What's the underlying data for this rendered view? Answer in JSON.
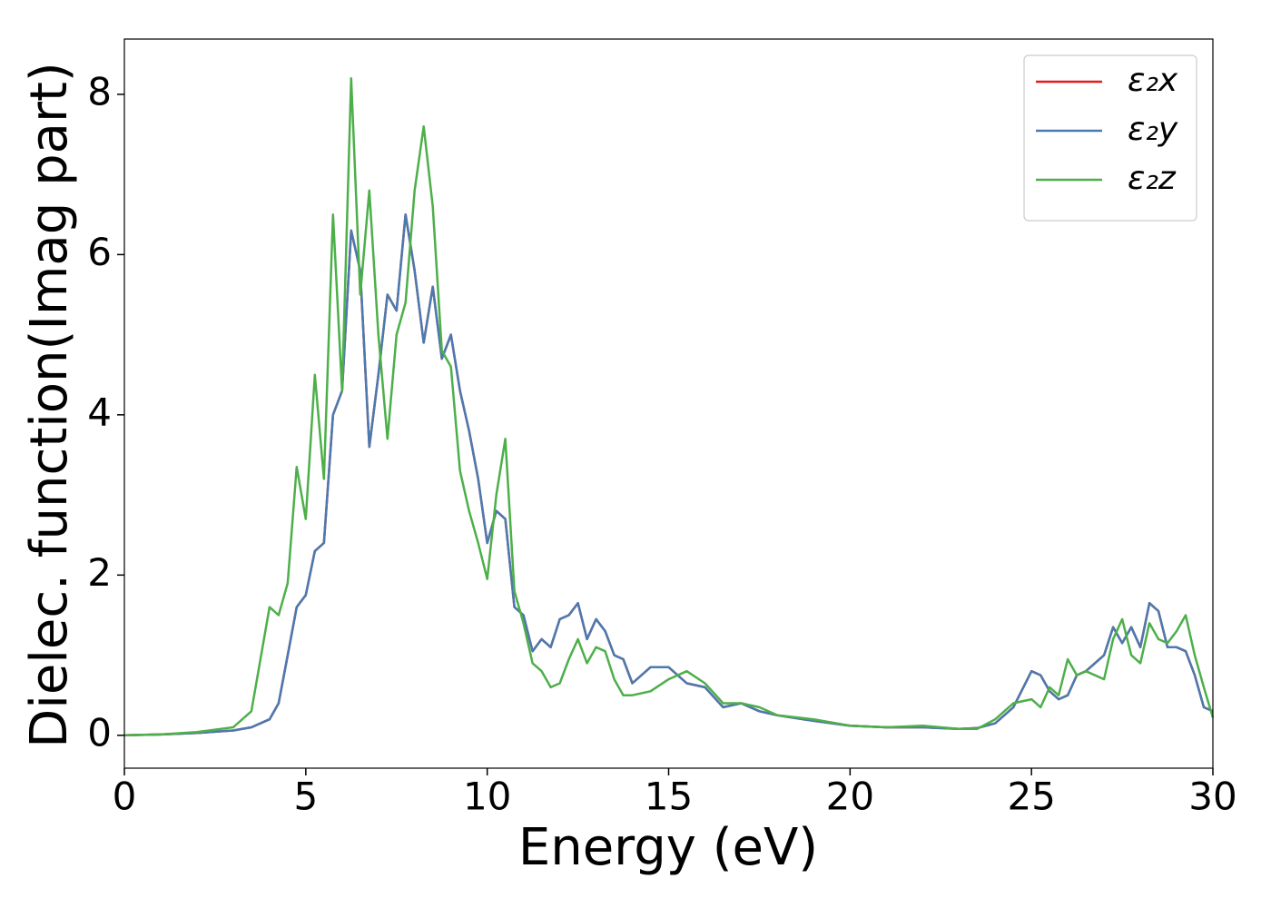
{
  "chart_data": {
    "type": "line",
    "x_label": "Energy (eV)",
    "y_label": "Dielec. function(Imag part)",
    "x": [
      0,
      1,
      2,
      3,
      3.5,
      4,
      4.25,
      4.5,
      4.75,
      5,
      5.25,
      5.5,
      5.75,
      6,
      6.25,
      6.5,
      6.75,
      7,
      7.25,
      7.5,
      7.75,
      8,
      8.25,
      8.5,
      8.75,
      9,
      9.25,
      9.5,
      9.75,
      10,
      10.25,
      10.5,
      10.75,
      11,
      11.25,
      11.5,
      11.75,
      12,
      12.25,
      12.5,
      12.75,
      13,
      13.25,
      13.5,
      13.75,
      14,
      14.5,
      15,
      15.5,
      16,
      16.5,
      17,
      17.5,
      18,
      19,
      20,
      21,
      22,
      23,
      23.5,
      24,
      24.5,
      25,
      25.25,
      25.5,
      25.75,
      26,
      26.25,
      26.5,
      27,
      27.25,
      27.5,
      27.75,
      28,
      28.25,
      28.5,
      28.75,
      29,
      29.25,
      29.5,
      29.75,
      30
    ],
    "series": [
      {
        "name": "ε₂x",
        "color": "#e41a1c",
        "values": [
          0,
          0.01,
          0.03,
          0.06,
          0.1,
          0.2,
          0.4,
          1.0,
          1.6,
          1.75,
          2.3,
          2.4,
          4.0,
          4.3,
          6.3,
          5.8,
          3.6,
          4.5,
          5.5,
          5.3,
          6.5,
          5.8,
          4.9,
          5.6,
          4.7,
          5.0,
          4.3,
          3.8,
          3.2,
          2.4,
          2.8,
          2.7,
          1.6,
          1.5,
          1.05,
          1.2,
          1.1,
          1.45,
          1.5,
          1.65,
          1.2,
          1.45,
          1.3,
          1.0,
          0.95,
          0.65,
          0.85,
          0.85,
          0.65,
          0.6,
          0.35,
          0.4,
          0.3,
          0.25,
          0.18,
          0.12,
          0.1,
          0.1,
          0.08,
          0.09,
          0.15,
          0.35,
          0.8,
          0.75,
          0.55,
          0.45,
          0.5,
          0.75,
          0.8,
          1.0,
          1.35,
          1.15,
          1.35,
          1.1,
          1.65,
          1.55,
          1.1,
          1.1,
          1.05,
          0.75,
          0.35,
          0.3
        ]
      },
      {
        "name": "ε₂y",
        "color": "#4a7ab0",
        "values": [
          0,
          0.01,
          0.03,
          0.06,
          0.1,
          0.2,
          0.4,
          1.0,
          1.6,
          1.75,
          2.3,
          2.4,
          4.0,
          4.3,
          6.3,
          5.8,
          3.6,
          4.5,
          5.5,
          5.3,
          6.5,
          5.8,
          4.9,
          5.6,
          4.7,
          5.0,
          4.3,
          3.8,
          3.2,
          2.4,
          2.8,
          2.7,
          1.6,
          1.5,
          1.05,
          1.2,
          1.1,
          1.45,
          1.5,
          1.65,
          1.2,
          1.45,
          1.3,
          1.0,
          0.95,
          0.65,
          0.85,
          0.85,
          0.65,
          0.6,
          0.35,
          0.4,
          0.3,
          0.25,
          0.18,
          0.12,
          0.1,
          0.1,
          0.08,
          0.09,
          0.15,
          0.35,
          0.8,
          0.75,
          0.55,
          0.45,
          0.5,
          0.75,
          0.8,
          1.0,
          1.35,
          1.15,
          1.35,
          1.1,
          1.65,
          1.55,
          1.1,
          1.1,
          1.05,
          0.75,
          0.35,
          0.3
        ]
      },
      {
        "name": "ε₂z",
        "color": "#4daf4a",
        "values": [
          0,
          0.01,
          0.04,
          0.1,
          0.3,
          1.6,
          1.5,
          1.9,
          3.35,
          2.7,
          4.5,
          3.2,
          6.5,
          4.3,
          8.2,
          5.5,
          6.8,
          5.0,
          3.7,
          5.0,
          5.4,
          6.8,
          7.6,
          6.6,
          4.8,
          4.6,
          3.3,
          2.8,
          2.4,
          1.95,
          3.0,
          3.7,
          1.8,
          1.4,
          0.9,
          0.8,
          0.6,
          0.65,
          0.95,
          1.2,
          0.9,
          1.1,
          1.05,
          0.7,
          0.5,
          0.5,
          0.55,
          0.7,
          0.8,
          0.65,
          0.4,
          0.4,
          0.35,
          0.25,
          0.2,
          0.12,
          0.1,
          0.12,
          0.08,
          0.08,
          0.2,
          0.4,
          0.45,
          0.35,
          0.6,
          0.5,
          0.95,
          0.75,
          0.8,
          0.7,
          1.2,
          1.45,
          1.0,
          0.9,
          1.4,
          1.2,
          1.15,
          1.3,
          1.5,
          1.0,
          0.6,
          0.22
        ]
      }
    ],
    "xlim": [
      0,
      30
    ],
    "xticks": [
      0,
      5,
      10,
      15,
      20,
      25,
      30
    ],
    "ylim": [
      -0.41,
      8.69
    ],
    "yticks": [
      0,
      2,
      4,
      6,
      8
    ],
    "grid": false,
    "legend": "upper right"
  }
}
